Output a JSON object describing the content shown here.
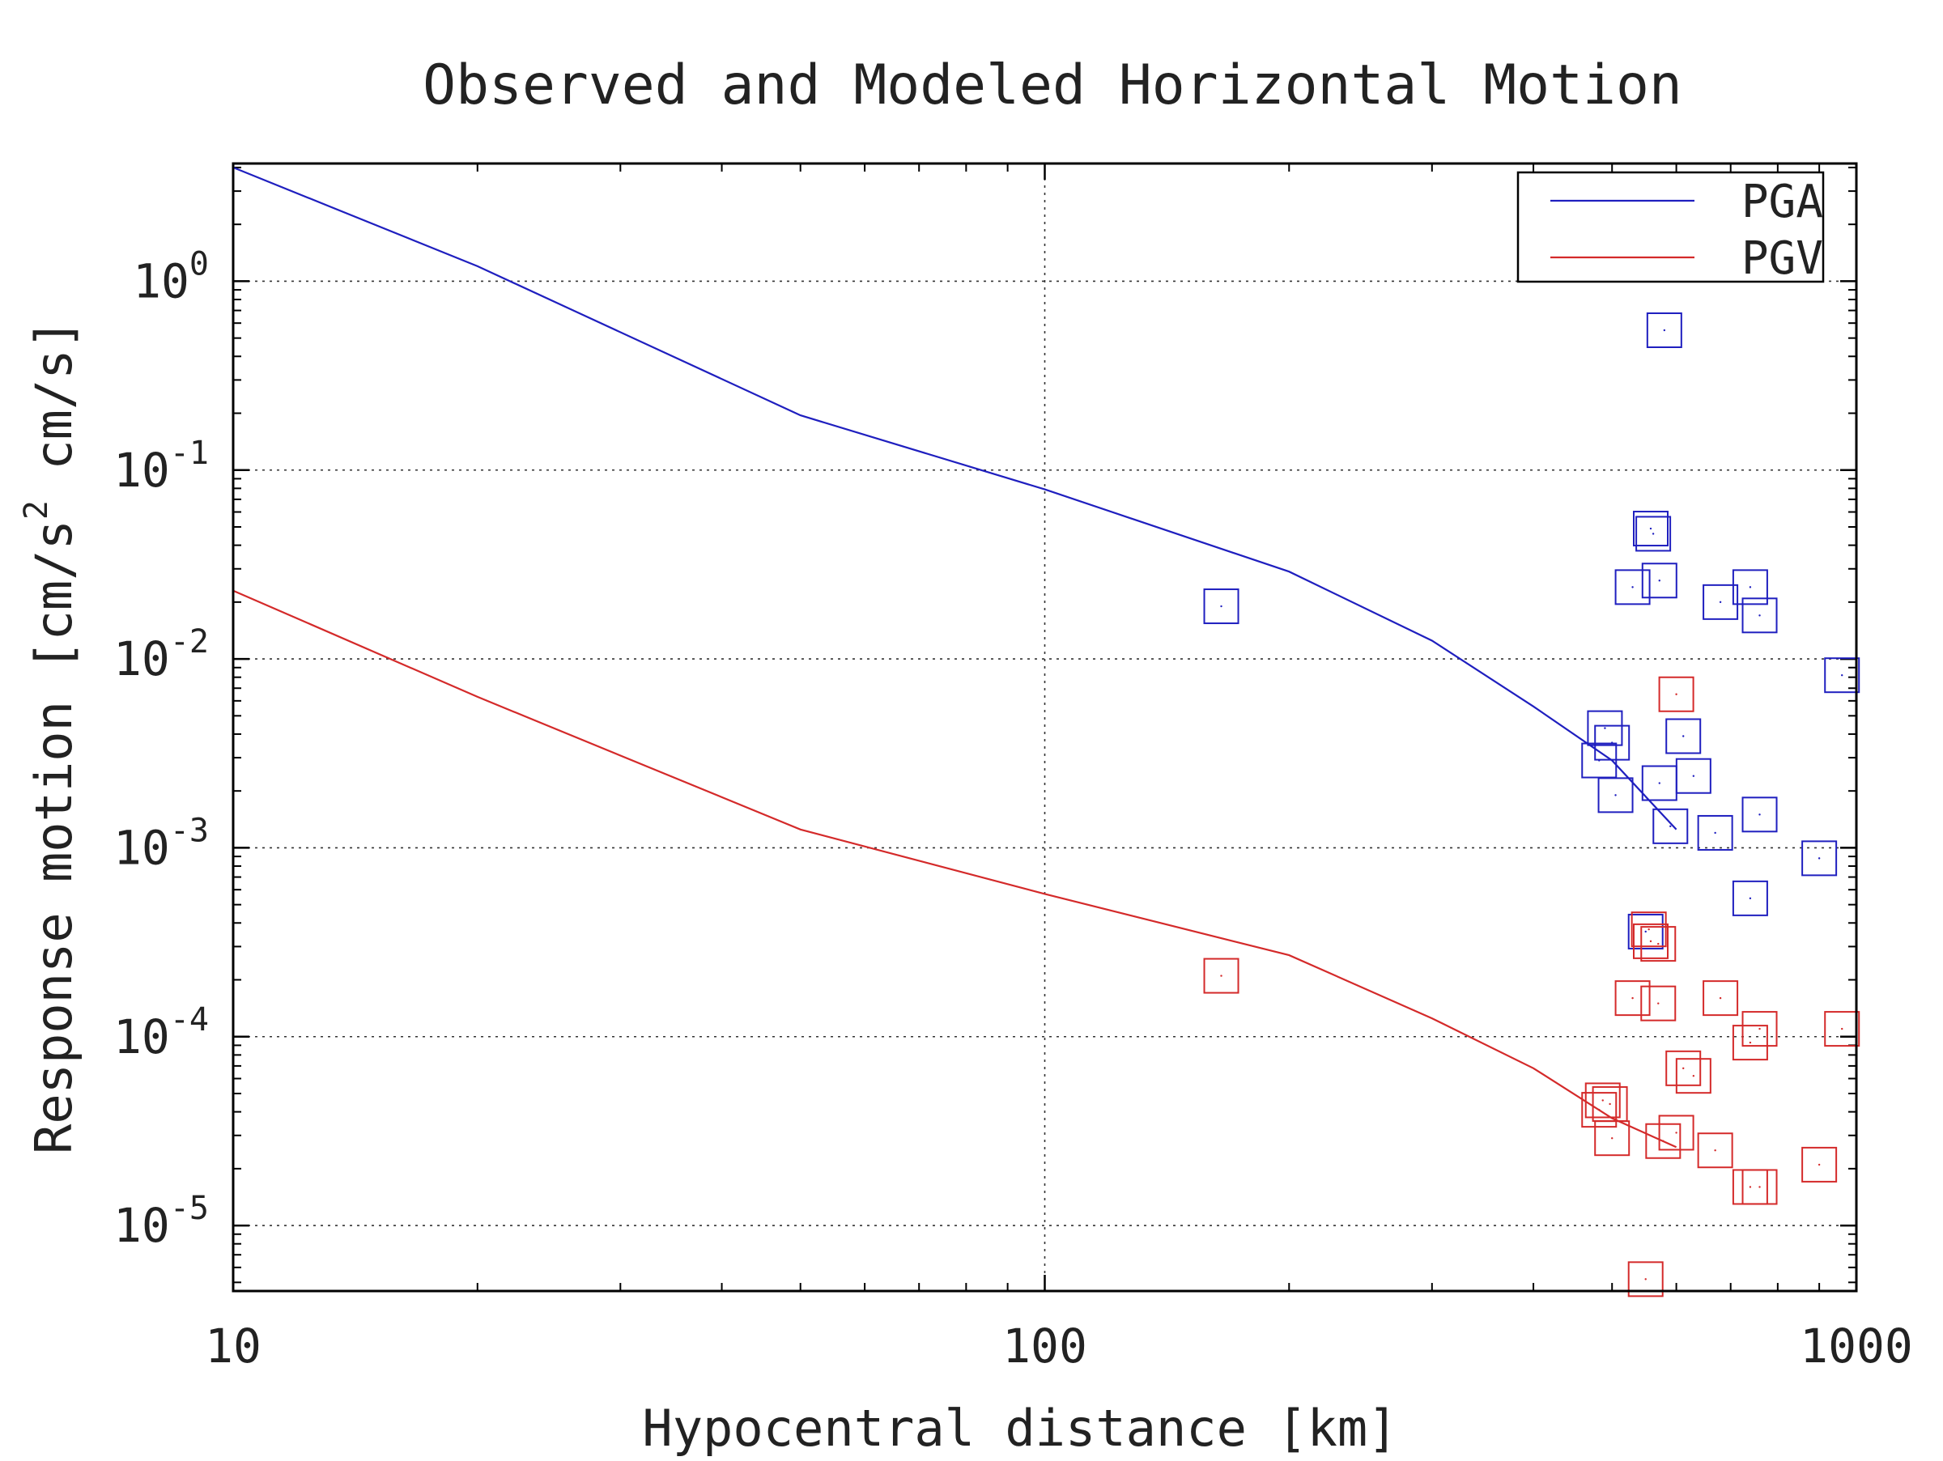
{
  "chart_data": {
    "type": "scatter",
    "title": "Observed and Modeled Horizontal Motion",
    "xlabel": "Hypocentral distance [km]",
    "ylabel_parts": {
      "before": "Response motion  [cm/s",
      "superscript": "2",
      "after": "  cm/s]"
    },
    "x_scale": "log",
    "y_scale": "log",
    "xlim": [
      10,
      1000
    ],
    "ylim": [
      4.5e-06,
      4.2
    ],
    "x_ticks": [
      {
        "value": 10,
        "label": "10"
      },
      {
        "value": 100,
        "label": "100"
      },
      {
        "value": 1000,
        "label": "1000"
      }
    ],
    "y_ticks": [
      {
        "value": 1,
        "base": "10",
        "exp": "0"
      },
      {
        "value": 0.1,
        "base": "10",
        "exp": "-1"
      },
      {
        "value": 0.01,
        "base": "10",
        "exp": "-2"
      },
      {
        "value": 0.001,
        "base": "10",
        "exp": "-3"
      },
      {
        "value": 0.0001,
        "base": "10",
        "exp": "-4"
      },
      {
        "value": 1e-05,
        "base": "10",
        "exp": "-5"
      }
    ],
    "grid": true,
    "legend_position": "top-right",
    "series": [
      {
        "name": "PGA",
        "color": "#1f1fbf",
        "model_line": [
          [
            10,
            4.0
          ],
          [
            20,
            1.2
          ],
          [
            50,
            0.195
          ],
          [
            100,
            0.079
          ],
          [
            200,
            0.029
          ],
          [
            300,
            0.0125
          ],
          [
            400,
            0.0056
          ],
          [
            500,
            0.0029
          ],
          [
            600,
            0.00125
          ]
        ],
        "observed": [
          [
            165,
            0.019
          ],
          [
            580,
            0.55
          ],
          [
            558,
            0.049
          ],
          [
            562,
            0.046
          ],
          [
            572,
            0.026
          ],
          [
            530,
            0.024
          ],
          [
            680,
            0.02
          ],
          [
            740,
            0.024
          ],
          [
            760,
            0.017
          ],
          [
            960,
            0.0082
          ],
          [
            490,
            0.0043
          ],
          [
            500,
            0.0036
          ],
          [
            612,
            0.0039
          ],
          [
            482,
            0.0029
          ],
          [
            505,
            0.0019
          ],
          [
            572,
            0.0022
          ],
          [
            630,
            0.0024
          ],
          [
            760,
            0.0015
          ],
          [
            590,
            0.0013
          ],
          [
            670,
            0.0012
          ],
          [
            900,
            0.00088
          ],
          [
            740,
            0.00054
          ],
          [
            550,
            0.00036
          ]
        ]
      },
      {
        "name": "PGV",
        "color": "#d42a2a",
        "model_line": [
          [
            10,
            0.023
          ],
          [
            20,
            0.0063
          ],
          [
            50,
            0.00125
          ],
          [
            100,
            0.00057
          ],
          [
            200,
            0.00027
          ],
          [
            300,
            0.000125
          ],
          [
            400,
            6.8e-05
          ],
          [
            500,
            3.7e-05
          ],
          [
            600,
            2.6e-05
          ]
        ],
        "observed": [
          [
            165,
            0.00021
          ],
          [
            600,
            0.0065
          ],
          [
            555,
            0.00037
          ],
          [
            558,
            0.00032
          ],
          [
            570,
            0.00031
          ],
          [
            530,
            0.00016
          ],
          [
            570,
            0.00015
          ],
          [
            680,
            0.00016
          ],
          [
            760,
            0.00011
          ],
          [
            960,
            0.00011
          ],
          [
            740,
            9.3e-05
          ],
          [
            612,
            6.8e-05
          ],
          [
            630,
            6.2e-05
          ],
          [
            487,
            4.6e-05
          ],
          [
            497,
            4.4e-05
          ],
          [
            482,
            4.1e-05
          ],
          [
            500,
            2.9e-05
          ],
          [
            600,
            3.1e-05
          ],
          [
            578,
            2.8e-05
          ],
          [
            670,
            2.5e-05
          ],
          [
            900,
            2.1e-05
          ],
          [
            740,
            1.6e-05
          ],
          [
            760,
            1.6e-05
          ],
          [
            550,
            5.2e-06
          ]
        ]
      }
    ]
  }
}
